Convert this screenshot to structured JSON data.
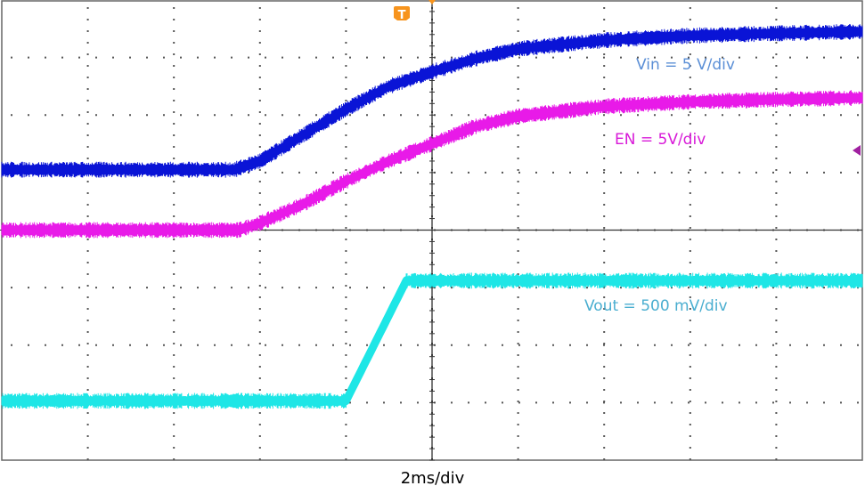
{
  "chart_data": {
    "type": "line",
    "xlabel": "2ms/div",
    "x_unit": "ms",
    "y_unit": "div",
    "xlim": [
      -10,
      10
    ],
    "ylim": [
      -4,
      4
    ],
    "grid": true,
    "trigger_marker": "T",
    "series": [
      {
        "name": "Vin = 5 V/div",
        "color": "#0a14d6",
        "label_color": "#5b8fd6",
        "x": [
          -10,
          -4.6,
          -4,
          -3,
          -2,
          -1,
          0,
          1,
          2,
          4,
          6,
          8,
          10
        ],
        "y": [
          1.05,
          1.05,
          1.2,
          1.65,
          2.1,
          2.5,
          2.75,
          2.98,
          3.15,
          3.3,
          3.38,
          3.42,
          3.45
        ]
      },
      {
        "name": "EN = 5V/div",
        "color": "#e81ae8",
        "label_color": "#d81ad8",
        "x": [
          -10,
          -4.5,
          -4,
          -3,
          -2,
          -1,
          0,
          1,
          2,
          4,
          6,
          8,
          10
        ],
        "y": [
          0,
          0,
          0.12,
          0.45,
          0.85,
          1.2,
          1.5,
          1.8,
          1.98,
          2.15,
          2.23,
          2.27,
          2.3
        ]
      },
      {
        "name": "Vout = 500 mV/div",
        "color": "#1ee6e6",
        "label_color": "#4aaed0",
        "x": [
          -10,
          -2,
          -0.6,
          10
        ],
        "y": [
          -2.97,
          -2.97,
          -0.88,
          -0.88
        ]
      }
    ],
    "colors": {
      "trigger": "#f7941d",
      "ref_marker": "#a020a0",
      "grid": "#555555"
    }
  }
}
